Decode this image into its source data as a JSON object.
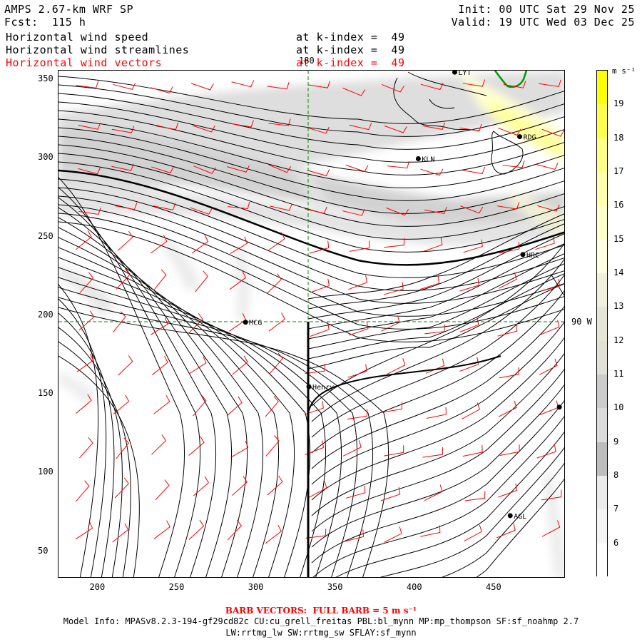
{
  "header": {
    "model_title": "AMPS 2.67-km WRF SP",
    "forecast": "Fcst:  115 h",
    "init": "Init: 00 UTC Sat 29 Nov 25",
    "valid": "Valid: 19 UTC Wed 03 Dec 25",
    "fields": [
      {
        "name": "Horizontal wind speed",
        "level": "at k-index =  49",
        "color": "#000000"
      },
      {
        "name": "Horizontal wind streamlines",
        "level": "at k-index =  49",
        "color": "#000000"
      },
      {
        "name": "Horizontal wind vectors",
        "level": "at k-index =  49",
        "color": "#ff0000"
      }
    ]
  },
  "axes": {
    "x_ticks": [
      "200",
      "250",
      "300",
      "350",
      "400",
      "450"
    ],
    "y_ticks": [
      "350",
      "300",
      "250",
      "200",
      "150",
      "100",
      "50"
    ],
    "xlim": [
      175,
      495
    ],
    "ylim": [
      33,
      356
    ],
    "grid_lines": [
      {
        "label": "180",
        "type": "meridian"
      },
      {
        "label": "90 W",
        "type": "meridian"
      }
    ]
  },
  "stations": [
    {
      "name": "LYT",
      "x": 425,
      "y": 355
    },
    {
      "name": "RDG",
      "x": 466,
      "y": 314
    },
    {
      "name": "KLN",
      "x": 402,
      "y": 300
    },
    {
      "name": "HRC",
      "x": 468,
      "y": 239
    },
    {
      "name": "MCG",
      "x": 293,
      "y": 196
    },
    {
      "name": "Henry",
      "x": 333,
      "y": 155
    },
    {
      "name": "",
      "x": 491,
      "y": 142
    },
    {
      "name": "AGL",
      "x": 460,
      "y": 73
    }
  ],
  "colorbar": {
    "unit": "m s⁻¹",
    "labels": [
      "19",
      "18",
      "17",
      "16",
      "15",
      "14",
      "13",
      "12",
      "11",
      "10",
      "9",
      "8",
      "7",
      "6"
    ],
    "colors": [
      "#ffff00",
      "#ffff4a",
      "#ffff86",
      "#ffffad",
      "#ffffcc",
      "#ffffe2",
      "#f0f0dd",
      "#e6e6d6",
      "#e1e1d6",
      "#cccccc",
      "#dcdcdc",
      "#bdbdbd",
      "#ebebeb",
      "#f4f4f4",
      "#ffffff"
    ]
  },
  "footer": {
    "barb_note": "BARB VECTORS:  FULL BARB = 5 m s⁻¹",
    "model_info": "Model Info: MPASv8.2.3-194-gf29cd82c CU:cu_grell_freitas PBL:bl_mynn MP:mp_thompson SF:sf_noahmp 2.7",
    "model_info2": "LW:rrtmg_lw SW:rrtmg_sw SFLAY:sf_mynn"
  }
}
